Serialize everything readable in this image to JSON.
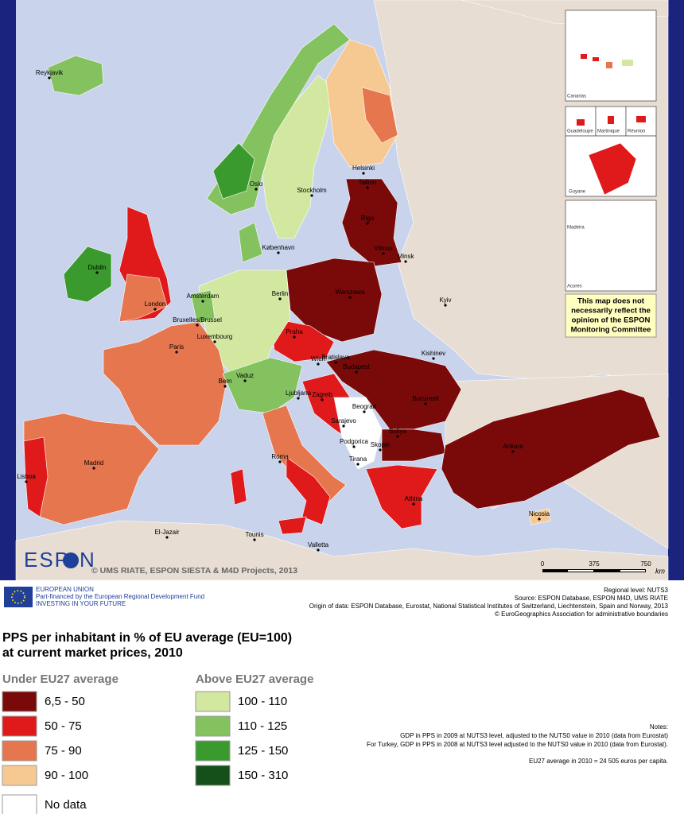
{
  "map": {
    "cities": [
      "Reykjavik",
      "Oslo",
      "Stockholm",
      "Helsinki",
      "Tallinn",
      "Riga",
      "Vilnius",
      "Minsk",
      "København",
      "Dublin",
      "London",
      "Amsterdam",
      "Berlin",
      "Warszawa",
      "Bruxelles/Brussel",
      "Luxembourg",
      "Paris",
      "Praha",
      "Kyiv",
      "Wien",
      "Bratislava",
      "Budapest",
      "Kishinev",
      "Bern",
      "Vaduz",
      "Ljubljana",
      "Zagreb",
      "Beograd",
      "Bucuresti",
      "Sarajevo",
      "Podgorica",
      "Sofiya",
      "Skopje",
      "Tirana",
      "Ankara",
      "Roma",
      "Madrid",
      "Lisboa",
      "Athina",
      "Nicosia",
      "El-Jazair",
      "Tounis",
      "Valletta"
    ],
    "insets": [
      "Canarias",
      "Guadeloupe",
      "Martinique",
      "Réunion",
      "Guyane",
      "Madeira",
      "Acores"
    ],
    "note": [
      "This map does not",
      "necessarily reflect the",
      "opinion of the ESPON",
      "Monitoring Committee"
    ],
    "scale": {
      "ticks": [
        "0",
        "375",
        "750"
      ],
      "unit": "km"
    },
    "logo": [
      "ESP",
      "N"
    ],
    "credit": "© UMS RIATE, ESPON SIESTA & M4D Projects, 2013"
  },
  "footer": {
    "eu": [
      "EUROPEAN UNION",
      "Part-financed by the European Regional Development Fund",
      "INVESTING IN YOUR FUTURE"
    ],
    "sources": [
      "Regional level: NUTS3",
      "Source: ESPON Database, ESPON M4D, UMS RIATE",
      "Origin of data: ESPON Database, Eurostat, National Statistical Institutes of Switzerland, Liechtenstein, Spain and Norway, 2013",
      "© EuroGeographics Association for administrative boundaries"
    ]
  },
  "legend": {
    "title": [
      "PPS per inhabitant in % of EU average (EU=100)",
      "at current market prices, 2010"
    ],
    "under": {
      "heading": "Under EU27 average",
      "classes": [
        {
          "label": "6,5 - 50",
          "color": "#7a0a0a"
        },
        {
          "label": "50 - 75",
          "color": "#e0191b"
        },
        {
          "label": "75 - 90",
          "color": "#e6764d"
        },
        {
          "label": "90 - 100",
          "color": "#f7c992"
        }
      ]
    },
    "above": {
      "heading": "Above EU27 average",
      "classes": [
        {
          "label": "100 - 110",
          "color": "#d2e8a0"
        },
        {
          "label": "110 - 125",
          "color": "#84c260"
        },
        {
          "label": "125 - 150",
          "color": "#3a9a2e"
        },
        {
          "label": "150 - 310",
          "color": "#15501a"
        }
      ]
    },
    "nodata": {
      "label": "No data",
      "color": "#ffffff"
    },
    "notes": [
      "Notes:",
      "GDP in PPS in 2009 at NUTS3 level, adjusted to the NUTS0 value in 2010 (data from Eurostat)",
      "For Turkey, GDP in PPS in 2008 at NUTS3 level adjusted to the NUTS0 value in 2010 (data from Eurostat).",
      "EU27 average in 2010 = 24 505 euros per capita."
    ]
  }
}
